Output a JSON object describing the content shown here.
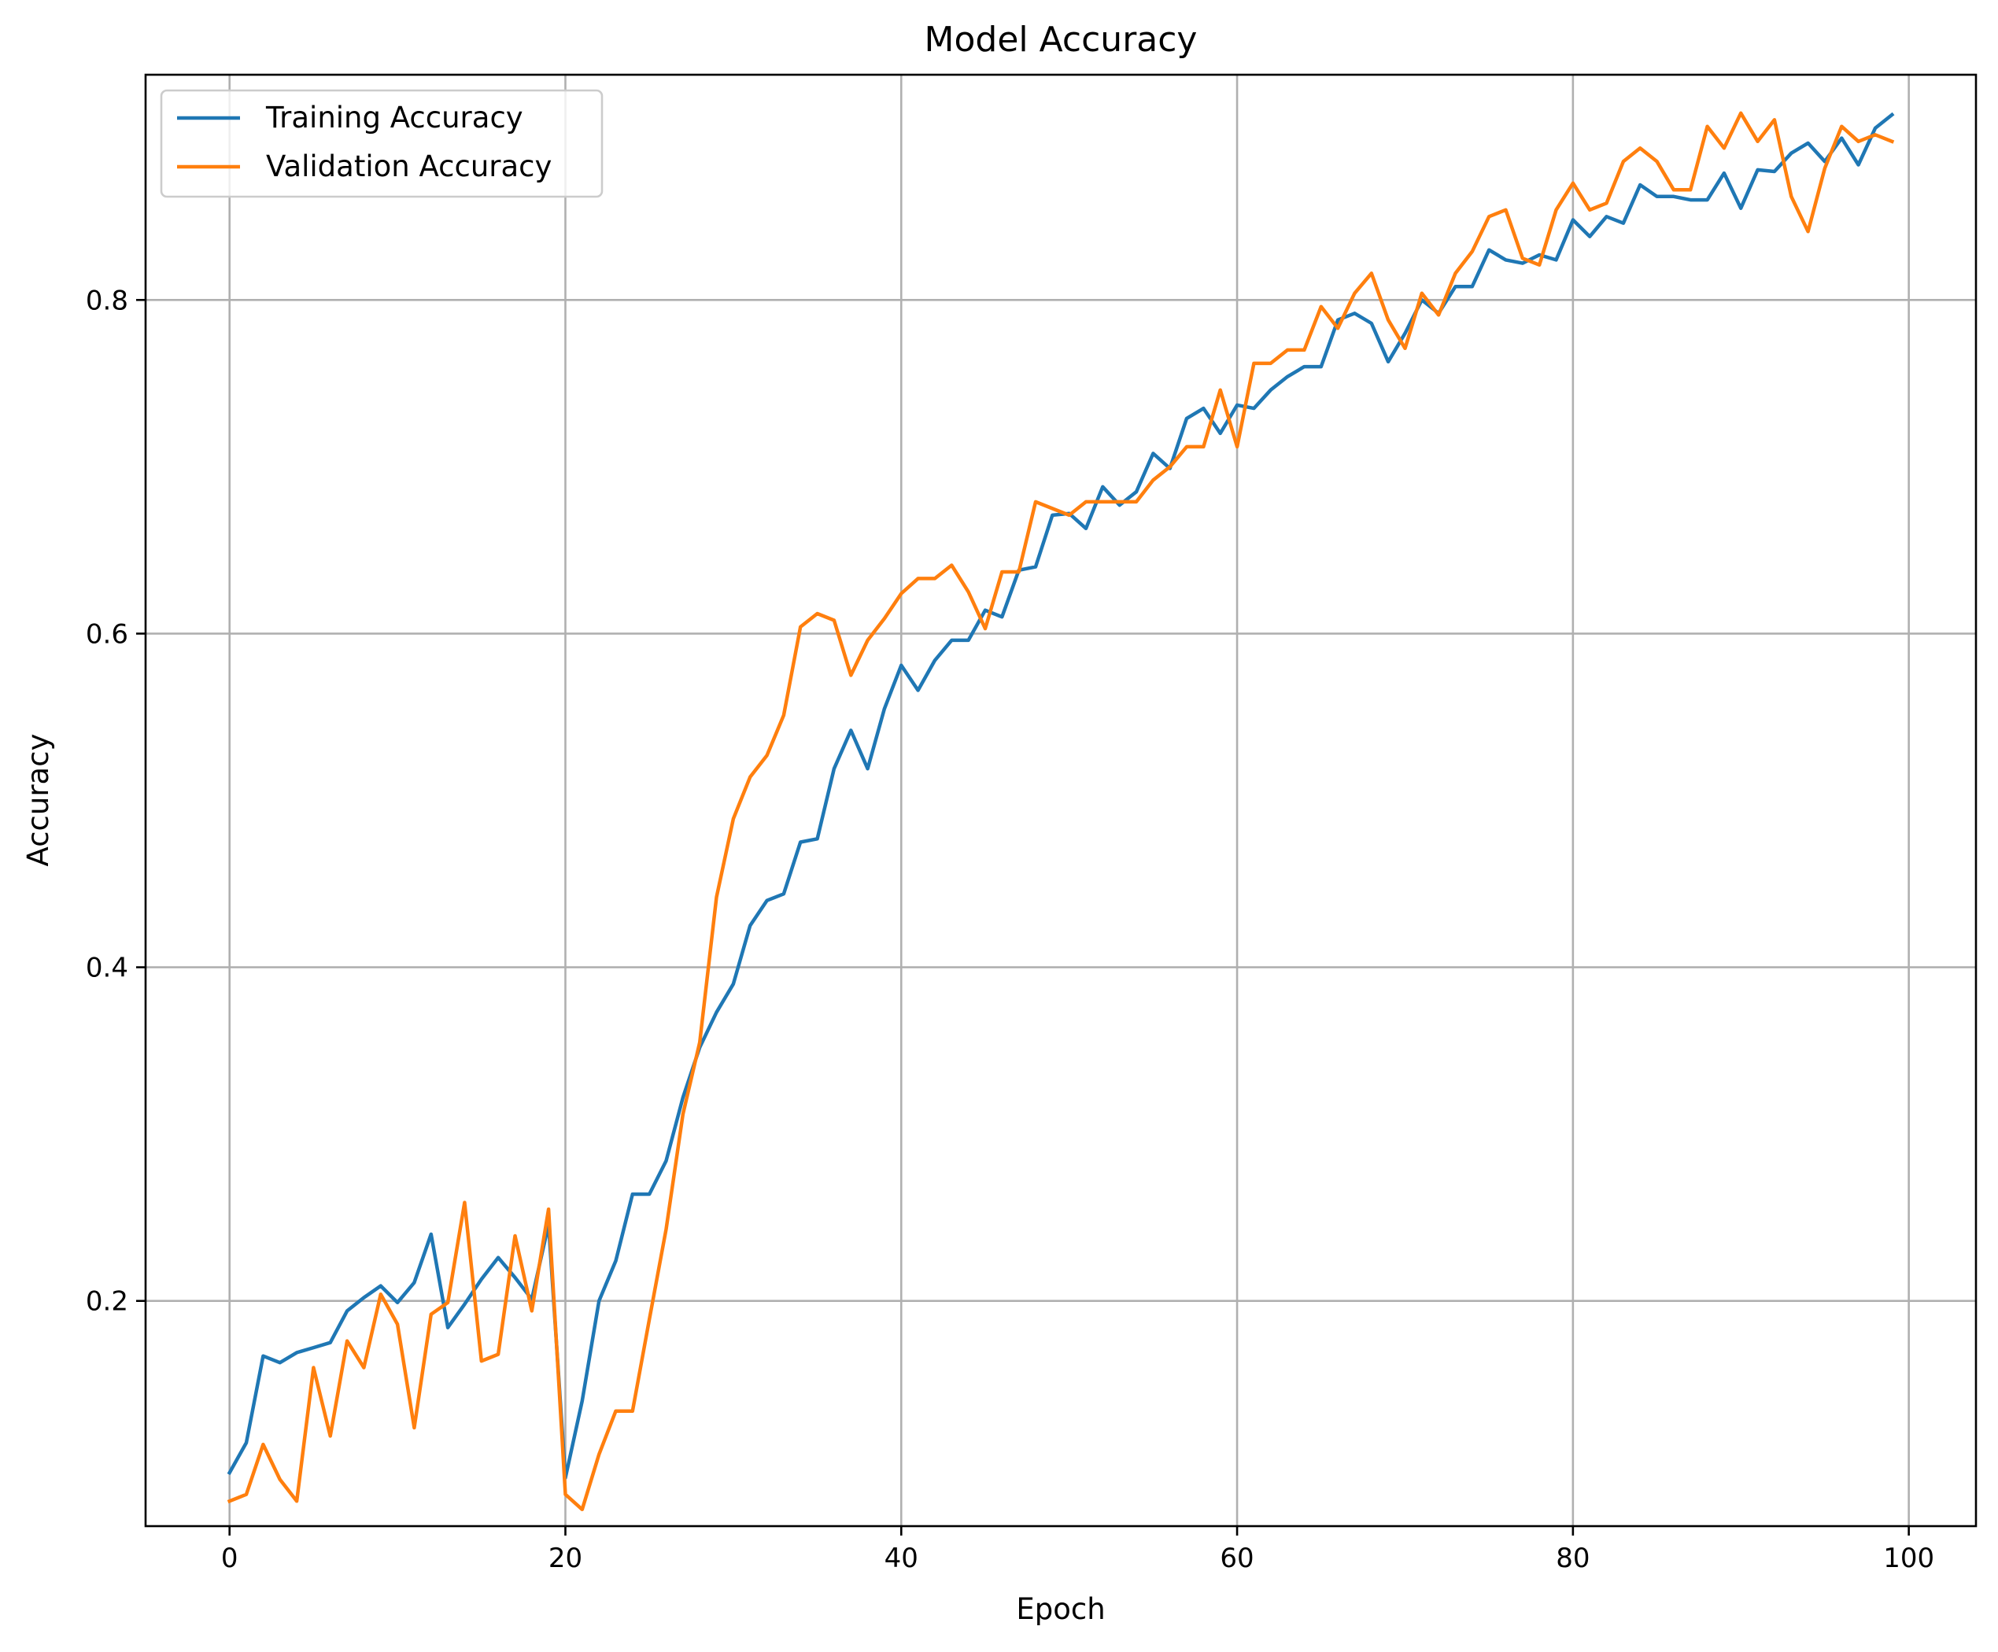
{
  "chart_data": {
    "type": "line",
    "title": "Model Accuracy",
    "xlabel": "Epoch",
    "ylabel": "Accuracy",
    "xlim": [
      -5,
      104
    ],
    "ylim": [
      0.065,
      0.935
    ],
    "xticks": [
      0,
      20,
      40,
      60,
      80,
      100
    ],
    "xtick_labels": [
      "0",
      "20",
      "40",
      "60",
      "80",
      "100"
    ],
    "yticks": [
      0.2,
      0.4,
      0.6,
      0.8
    ],
    "ytick_labels": [
      "0.2",
      "0.4",
      "0.6",
      "0.8"
    ],
    "grid": true,
    "legend_position": "upper-left",
    "series": [
      {
        "name": "Training Accuracy",
        "color": "#1f77b4",
        "values": [
          0.097,
          0.115,
          0.167,
          0.163,
          0.169,
          0.172,
          0.175,
          0.194,
          0.202,
          0.209,
          0.199,
          0.211,
          0.24,
          0.184,
          0.198,
          0.213,
          0.226,
          0.214,
          0.201,
          0.246,
          0.094,
          0.14,
          0.2,
          0.224,
          0.264,
          0.264,
          0.284,
          0.322,
          0.352,
          0.373,
          0.39,
          0.425,
          0.44,
          0.444,
          0.475,
          0.477,
          0.519,
          0.542,
          0.519,
          0.555,
          0.581,
          0.566,
          0.584,
          0.596,
          0.596,
          0.614,
          0.61,
          0.638,
          0.64,
          0.671,
          0.672,
          0.663,
          0.688,
          0.677,
          0.685,
          0.708,
          0.699,
          0.729,
          0.735,
          0.72,
          0.737,
          0.735,
          0.746,
          0.754,
          0.76,
          0.76,
          0.788,
          0.792,
          0.786,
          0.763,
          0.78,
          0.8,
          0.792,
          0.808,
          0.808,
          0.83,
          0.824,
          0.822,
          0.827,
          0.824,
          0.848,
          0.838,
          0.85,
          0.846,
          0.869,
          0.862,
          0.862,
          0.86,
          0.86,
          0.876,
          0.855,
          0.878,
          0.877,
          0.888,
          0.894,
          0.883,
          0.897,
          0.881,
          0.903,
          0.911
        ]
      },
      {
        "name": "Validation Accuracy",
        "color": "#ff7f0e",
        "values": [
          0.08,
          0.084,
          0.114,
          0.093,
          0.08,
          0.16,
          0.119,
          0.176,
          0.16,
          0.204,
          0.186,
          0.124,
          0.192,
          0.199,
          0.259,
          0.164,
          0.168,
          0.239,
          0.194,
          0.255,
          0.084,
          0.075,
          0.108,
          0.134,
          0.134,
          0.189,
          0.243,
          0.312,
          0.355,
          0.442,
          0.489,
          0.514,
          0.527,
          0.551,
          0.604,
          0.612,
          0.608,
          0.575,
          0.596,
          0.609,
          0.624,
          0.633,
          0.633,
          0.641,
          0.625,
          0.603,
          0.637,
          0.637,
          0.679,
          0.675,
          0.671,
          0.679,
          0.679,
          0.679,
          0.679,
          0.692,
          0.7,
          0.712,
          0.712,
          0.746,
          0.712,
          0.762,
          0.762,
          0.77,
          0.77,
          0.796,
          0.783,
          0.804,
          0.816,
          0.788,
          0.771,
          0.804,
          0.791,
          0.816,
          0.829,
          0.85,
          0.854,
          0.825,
          0.821,
          0.854,
          0.87,
          0.854,
          0.858,
          0.883,
          0.891,
          0.883,
          0.866,
          0.866,
          0.904,
          0.891,
          0.912,
          0.895,
          0.908,
          0.862,
          0.841,
          0.879,
          0.904,
          0.895,
          0.899,
          0.895
        ]
      }
    ]
  }
}
